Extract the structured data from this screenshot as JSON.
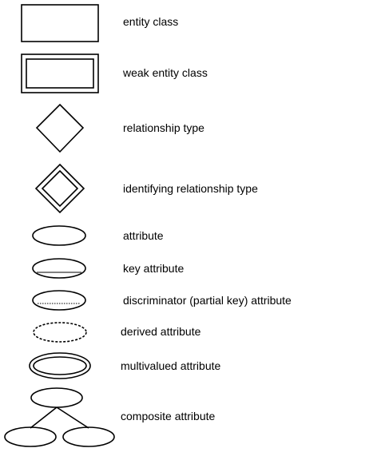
{
  "legend": {
    "items": [
      {
        "symbol": "rectangle",
        "label": "entity class"
      },
      {
        "symbol": "double-rectangle",
        "label": "weak entity class"
      },
      {
        "symbol": "diamond",
        "label": "relationship type"
      },
      {
        "symbol": "double-diamond",
        "label": "identifying relationship type"
      },
      {
        "symbol": "ellipse",
        "label": "attribute"
      },
      {
        "symbol": "ellipse-solid-underline",
        "label": "key attribute"
      },
      {
        "symbol": "ellipse-dotted-underline",
        "label": "discriminator (partial key) attribute"
      },
      {
        "symbol": "dashed-ellipse",
        "label": "derived attribute"
      },
      {
        "symbol": "double-ellipse",
        "label": "multivalued attribute"
      },
      {
        "symbol": "ellipse-tree",
        "label": "composite attribute"
      }
    ]
  },
  "colors": {
    "stroke": "#000000",
    "background": "#ffffff"
  }
}
